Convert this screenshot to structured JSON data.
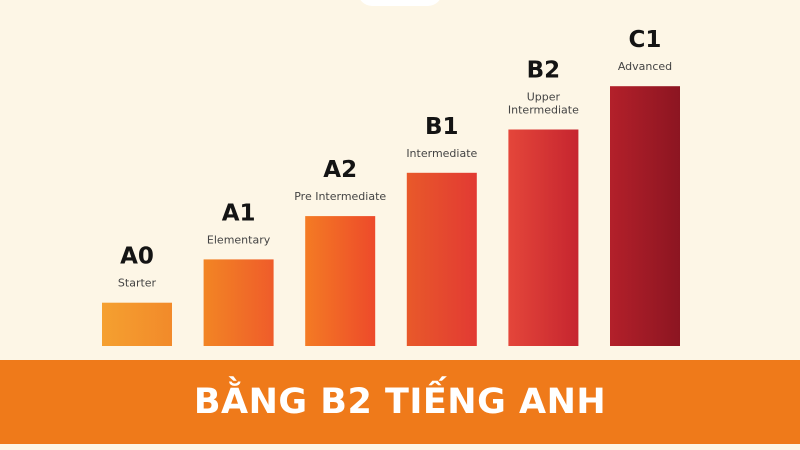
{
  "banner": {
    "title": "BẰNG B2 TIẾNG ANH"
  },
  "chart_data": {
    "type": "bar",
    "categories": [
      "A0",
      "A1",
      "A2",
      "B1",
      "B2",
      "C1"
    ],
    "category_descriptions": [
      "Starter",
      "Elementary",
      "Pre Intermediate",
      "Intermediate",
      "Upper Intermediate",
      "Advanced"
    ],
    "values": [
      1,
      2,
      3,
      4,
      5,
      6
    ],
    "ylim": [
      0,
      6
    ],
    "grid": false,
    "legend": "none",
    "colors": [
      [
        "#f5a030",
        "#f28a2a"
      ],
      [
        "#f28524",
        "#ef5c2a"
      ],
      [
        "#f47b24",
        "#ed4a2a"
      ],
      [
        "#e8592a",
        "#e23a33"
      ],
      [
        "#e4463a",
        "#c6252f"
      ],
      [
        "#b3202a",
        "#8c1521"
      ]
    ]
  },
  "colors": {
    "background": "#fdf6e6",
    "banner": "#ef7a1a",
    "banner_text": "#ffffff"
  }
}
